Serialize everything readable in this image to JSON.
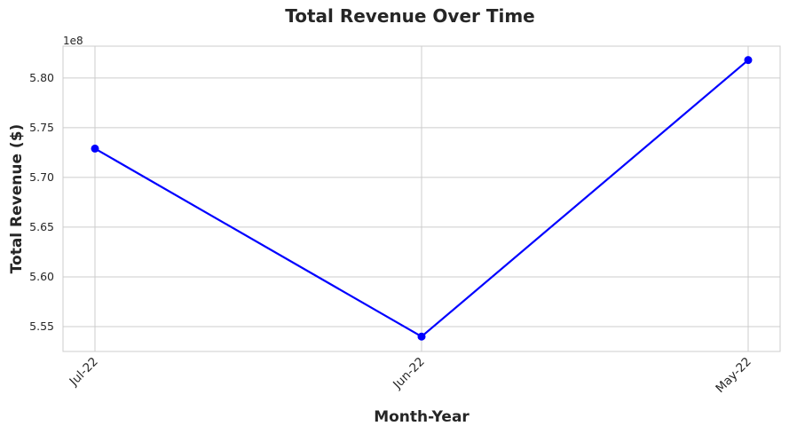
{
  "chart_data": {
    "type": "line",
    "title": "Total Revenue Over Time",
    "xlabel": "Month-Year",
    "ylabel": "Total Revenue ($)",
    "y_scale_label": "1e8",
    "categories": [
      "Jul-22",
      "Jun-22",
      "May-22"
    ],
    "series": [
      {
        "values": [
          572900000,
          554000000,
          581800000
        ],
        "color": "#0000ff",
        "marker": "circle"
      }
    ],
    "y_ticks": [
      5.55,
      5.6,
      5.65,
      5.7,
      5.75,
      5.8
    ],
    "y_tick_labels": [
      "5.55",
      "5.60",
      "5.65",
      "5.70",
      "5.75",
      "5.80"
    ],
    "ylim": [
      552500000,
      583200000
    ],
    "grid": true,
    "legend": "none"
  }
}
